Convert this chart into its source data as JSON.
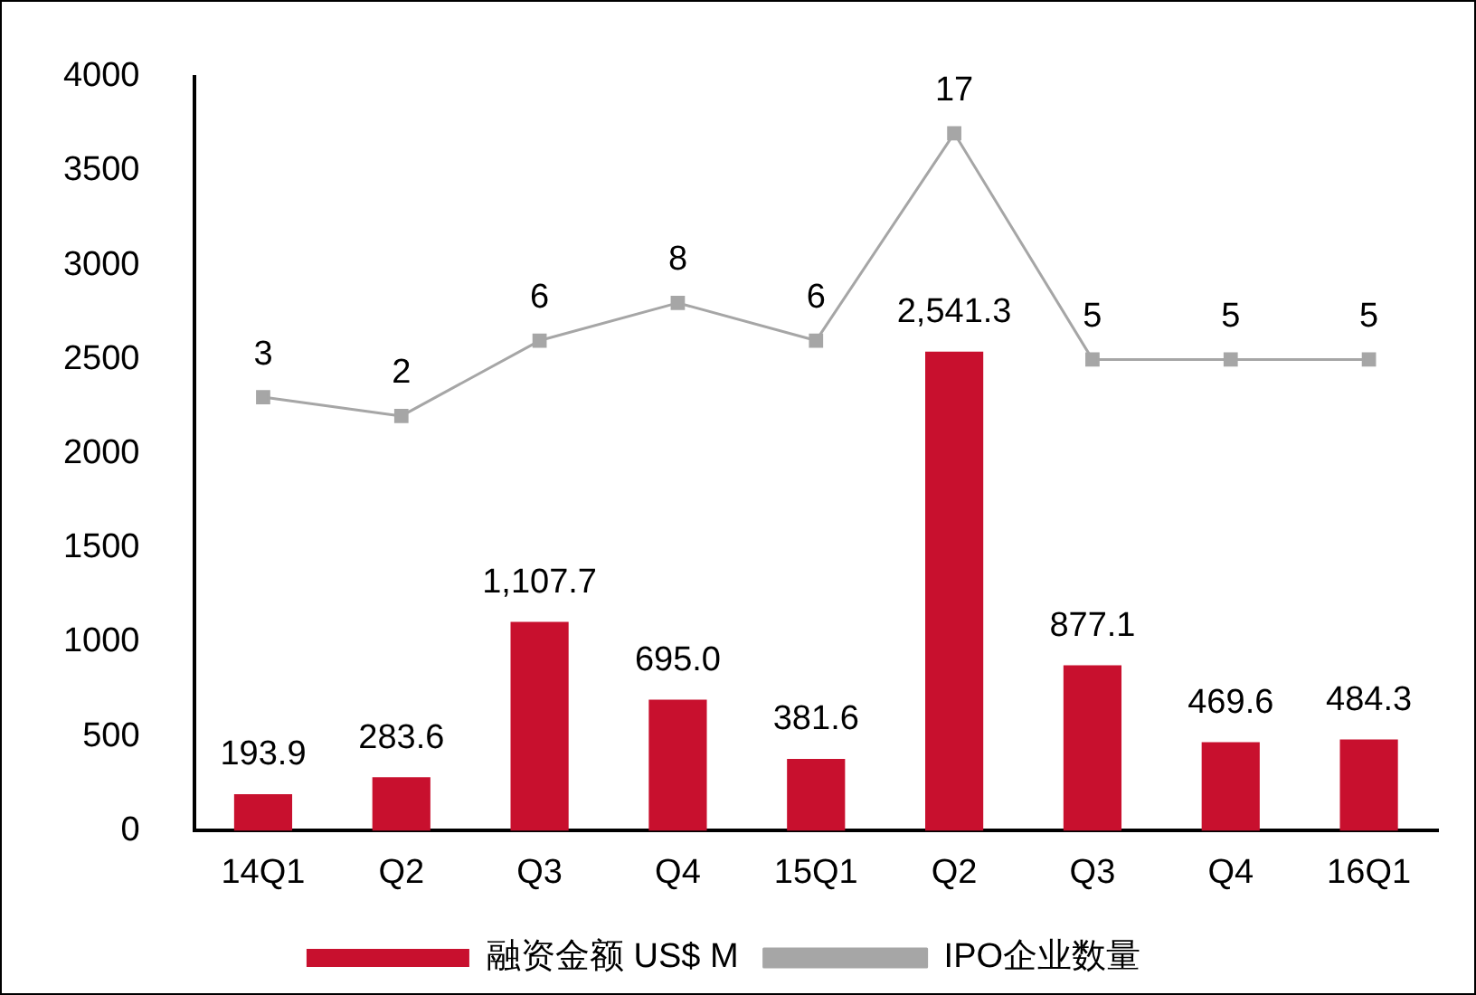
{
  "chart_data": {
    "type": "bar",
    "categories": [
      "14Q1",
      "Q2",
      "Q3",
      "Q4",
      "15Q1",
      "Q2",
      "Q3",
      "Q4",
      "16Q1"
    ],
    "ylim": [
      0,
      4000
    ],
    "yticks": [
      0,
      500,
      1000,
      1500,
      2000,
      2500,
      3000,
      3500,
      4000
    ],
    "y2lim": [
      -20,
      20
    ],
    "grid": false,
    "legend": "bottom",
    "marker": "square",
    "tick_labels": [
      "x",
      "y"
    ],
    "series": [
      {
        "name": "融资金额 US$ M",
        "color": "#c8102e",
        "values": [
          193.9,
          283.6,
          1107.7,
          695.0,
          381.6,
          2541.3,
          877.1,
          469.6,
          484.3
        ],
        "value_labels": [
          "193.9",
          "283.6",
          "1,107.7",
          "695.0",
          "381.6",
          "2,541.3",
          "877.1",
          "469.6",
          "484.3"
        ]
      },
      {
        "name": "IPO企业数量",
        "type": "line",
        "axis": "y2",
        "color": "#a6a6a6",
        "values": [
          3,
          2,
          6,
          8,
          6,
          17,
          5,
          5,
          5
        ],
        "value_labels": [
          "3",
          "2",
          "6",
          "8",
          "6",
          "17",
          "5",
          "5",
          "5"
        ]
      }
    ]
  }
}
